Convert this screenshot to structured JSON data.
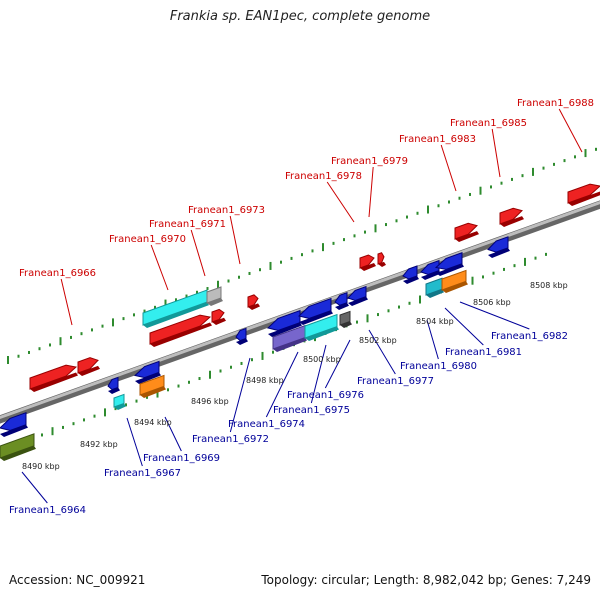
{
  "title": "Frankia sp. EAN1pec, complete genome",
  "footer": {
    "accession": "Accession: NC_009921",
    "stats": "Topology: circular; Length: 8,982,042 bp; Genes: 7,249"
  },
  "colors": {
    "forward_label": "#cc0000",
    "reverse_label": "#000099",
    "backbone": "#8a8a8a",
    "tick_track": "#2e8b2e"
  },
  "scale_labels": [
    "8490 kbp",
    "8492 kbp",
    "8494 kbp",
    "8496 kbp",
    "8498 kbp",
    "8500 kbp",
    "8502 kbp",
    "8504 kbp",
    "8506 kbp",
    "8508 kbp"
  ],
  "forward_genes": [
    "Franean1_6966",
    "Franean1_6970",
    "Franean1_6971",
    "Franean1_6973",
    "Franean1_6978",
    "Franean1_6979",
    "Franean1_6983",
    "Franean1_6985",
    "Franean1_6988"
  ],
  "reverse_genes": [
    "Franean1_6964",
    "Franean1_6967",
    "Franean1_6969",
    "Franean1_6972",
    "Franean1_6974",
    "Franean1_6975",
    "Franean1_6976",
    "Franean1_6977",
    "Franean1_6980",
    "Franean1_6981",
    "Franean1_6982"
  ]
}
